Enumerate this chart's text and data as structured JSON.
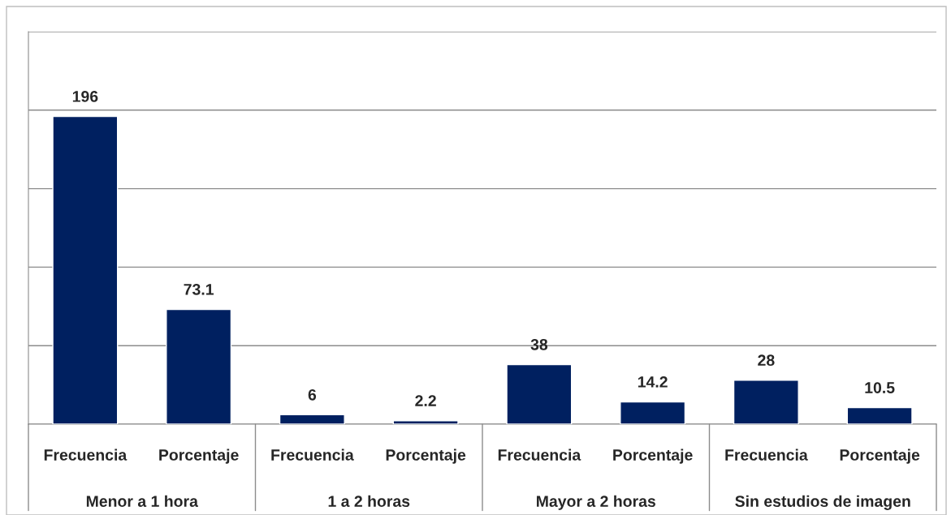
{
  "chart_data": {
    "type": "bar",
    "categories": [
      "Frecuencia",
      "Porcentaje",
      "Frecuencia",
      "Porcentaje",
      "Frecuencia",
      "Porcentaje",
      "Frecuencia",
      "Porcentaje"
    ],
    "values": [
      196,
      73.1,
      6,
      2.2,
      38,
      14.2,
      28,
      10.5
    ],
    "color": "#002060",
    "data_labels": true,
    "ylim": [
      0,
      250
    ],
    "yticks": [
      {
        "value": 0,
        "label": null
      },
      {
        "value": 50,
        "label": null
      },
      {
        "value": 100,
        "label": null
      },
      {
        "value": 150,
        "label": null
      },
      {
        "value": 200,
        "label": null
      },
      {
        "value": 250,
        "label": null
      }
    ],
    "grid": "y",
    "tick_labels": "x",
    "annotations": [
      "Menor a 1 hora",
      "1 a 2 horas",
      "Mayor a 2 horas",
      "Sin estudios de imagen"
    ]
  }
}
